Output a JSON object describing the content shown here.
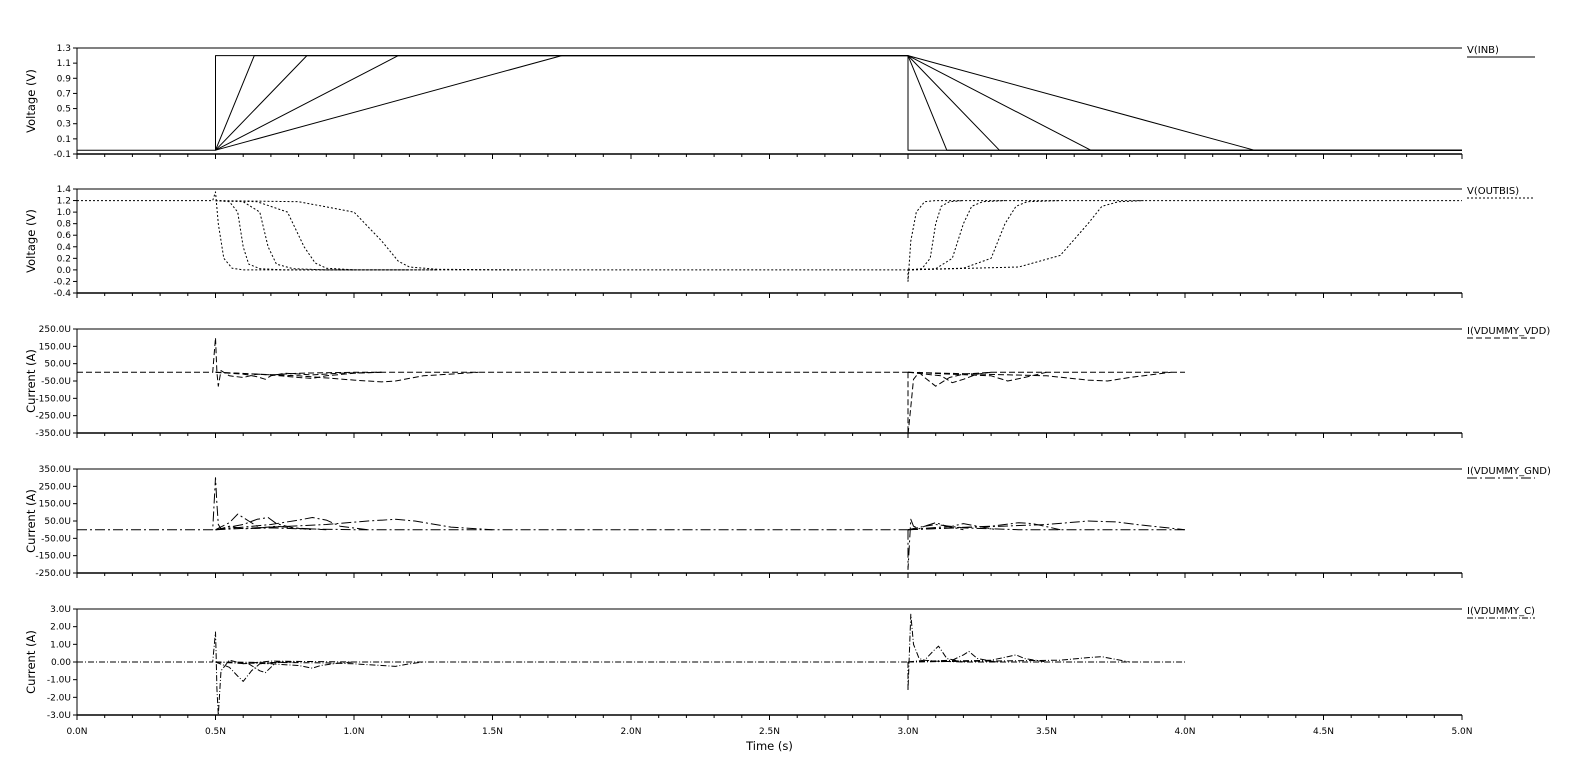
{
  "chart_data": [
    {
      "type": "line",
      "ylabel": "Voltage (V)",
      "yticks": [
        "1.3",
        "1.1",
        "0.9",
        "0.7",
        "0.5",
        "0.3",
        "0.1",
        "-0.1"
      ],
      "ylim": [
        -0.1,
        1.3
      ],
      "legend": "V(INB)",
      "dash": "",
      "series": [
        {
          "x": [
            0,
            0.5,
            0.5,
            3.0,
            3.0,
            5.0
          ],
          "values": [
            -0.05,
            -0.05,
            1.2,
            1.2,
            -0.05,
            -0.05
          ]
        },
        {
          "x": [
            0.5,
            0.64,
            3.0
          ],
          "values": [
            -0.05,
            1.2,
            1.2
          ]
        },
        {
          "x": [
            0.5,
            0.83,
            3.0
          ],
          "values": [
            -0.05,
            1.2,
            1.2
          ]
        },
        {
          "x": [
            0.5,
            1.16,
            3.0
          ],
          "values": [
            -0.05,
            1.2,
            1.2
          ]
        },
        {
          "x": [
            0.5,
            1.75,
            3.0
          ],
          "values": [
            -0.05,
            1.2,
            1.2
          ]
        },
        {
          "x": [
            3.0,
            3.14,
            5.0
          ],
          "values": [
            1.2,
            -0.05,
            -0.05
          ]
        },
        {
          "x": [
            3.0,
            3.33,
            5.0
          ],
          "values": [
            1.2,
            -0.05,
            -0.05
          ]
        },
        {
          "x": [
            3.0,
            3.66,
            5.0
          ],
          "values": [
            1.2,
            -0.05,
            -0.05
          ]
        },
        {
          "x": [
            3.0,
            4.25,
            5.0
          ],
          "values": [
            1.2,
            -0.05,
            -0.05
          ]
        }
      ]
    },
    {
      "type": "line",
      "ylabel": "Voltage (V)",
      "yticks": [
        "1.4",
        "1.2",
        "1.0",
        "0.8",
        "0.6",
        "0.4",
        "0.2",
        "0.0",
        "-0.2",
        "-0.4"
      ],
      "ylim": [
        -0.4,
        1.4
      ],
      "legend": "V(OUTBIS)",
      "dash": "2 2",
      "series": [
        {
          "x": [
            0,
            0.49,
            0.5,
            0.51,
            0.53,
            0.56,
            0.6,
            1.0,
            2.0,
            3.0,
            3.0,
            3.01,
            3.03,
            3.06,
            3.1,
            3.5,
            4.0,
            5.0
          ],
          "values": [
            1.2,
            1.2,
            1.35,
            0.8,
            0.2,
            0.03,
            0.0,
            0.0,
            0.0,
            0.0,
            -0.2,
            0.5,
            1.0,
            1.18,
            1.2,
            1.2,
            1.2,
            1.2
          ]
        },
        {
          "x": [
            0.5,
            0.55,
            0.58,
            0.6,
            0.62,
            0.66,
            0.75,
            1.0
          ],
          "values": [
            1.2,
            1.18,
            1.0,
            0.4,
            0.1,
            0.02,
            0.0,
            0.0
          ]
        },
        {
          "x": [
            0.5,
            0.6,
            0.66,
            0.69,
            0.72,
            0.78,
            0.9,
            1.2
          ],
          "values": [
            1.2,
            1.18,
            1.0,
            0.4,
            0.1,
            0.02,
            0.0,
            0.0
          ]
        },
        {
          "x": [
            0.5,
            0.65,
            0.76,
            0.82,
            0.86,
            0.9,
            1.0,
            1.3
          ],
          "values": [
            1.2,
            1.18,
            1.0,
            0.4,
            0.12,
            0.03,
            0.0,
            0.0
          ]
        },
        {
          "x": [
            0.5,
            0.8,
            1.0,
            1.1,
            1.16,
            1.2,
            1.3,
            1.6
          ],
          "values": [
            1.2,
            1.18,
            1.0,
            0.5,
            0.15,
            0.05,
            0.01,
            0.0
          ]
        },
        {
          "x": [
            3.0,
            3.05,
            3.08,
            3.1,
            3.12,
            3.15,
            3.2
          ],
          "values": [
            0.0,
            0.02,
            0.2,
            0.8,
            1.1,
            1.18,
            1.2
          ]
        },
        {
          "x": [
            3.0,
            3.1,
            3.16,
            3.2,
            3.23,
            3.27,
            3.35
          ],
          "values": [
            0.0,
            0.02,
            0.2,
            0.8,
            1.1,
            1.18,
            1.2
          ]
        },
        {
          "x": [
            3.0,
            3.2,
            3.3,
            3.35,
            3.39,
            3.43,
            3.55
          ],
          "values": [
            0.0,
            0.03,
            0.2,
            0.8,
            1.1,
            1.18,
            1.2
          ]
        },
        {
          "x": [
            3.0,
            3.4,
            3.55,
            3.65,
            3.7,
            3.76,
            3.85
          ],
          "values": [
            0.0,
            0.05,
            0.25,
            0.8,
            1.1,
            1.18,
            1.2
          ]
        }
      ]
    },
    {
      "type": "line",
      "ylabel": "Current (A)",
      "yticks": [
        "250.0U",
        "150.0U",
        "50.0U",
        "-50.0U",
        "-150.0U",
        "-250.0U",
        "-350.0U"
      ],
      "ylim": [
        -350,
        250
      ],
      "legend": "I(VDUMMY_VDD)",
      "dash": "6 3",
      "series": [
        {
          "x": [
            0,
            0.49,
            0.5,
            0.505,
            0.51,
            0.52,
            0.55,
            0.6,
            0.65,
            0.7,
            0.8,
            1.0,
            1.5,
            3.0
          ],
          "values": [
            0,
            0,
            200,
            0,
            -80,
            10,
            -20,
            -30,
            -10,
            -15,
            -5,
            0,
            0,
            0
          ]
        },
        {
          "x": [
            0.5,
            0.6,
            0.65,
            0.68,
            0.7,
            0.75,
            0.85,
            0.95,
            1.1
          ],
          "values": [
            0,
            -10,
            -25,
            -40,
            -20,
            -5,
            -15,
            -5,
            0
          ]
        },
        {
          "x": [
            0.5,
            0.7,
            0.8,
            0.85,
            0.9,
            1.0,
            1.1
          ],
          "values": [
            0,
            -15,
            -30,
            -35,
            -20,
            -5,
            0
          ]
        },
        {
          "x": [
            0.5,
            0.8,
            1.0,
            1.1,
            1.15,
            1.25,
            1.45
          ],
          "values": [
            0,
            -20,
            -45,
            -55,
            -50,
            -20,
            0
          ]
        },
        {
          "x": [
            3.0,
            3.0,
            3.01,
            3.02,
            3.04,
            3.06,
            3.1,
            3.15,
            3.2,
            3.3,
            3.5,
            4.0
          ],
          "values": [
            0,
            -360,
            -200,
            -40,
            0,
            -30,
            -80,
            -30,
            -10,
            0,
            0,
            0
          ]
        },
        {
          "x": [
            3.0,
            3.12,
            3.16,
            3.2,
            3.25,
            3.3
          ],
          "values": [
            0,
            -20,
            -60,
            -40,
            -10,
            0
          ]
        },
        {
          "x": [
            3.0,
            3.3,
            3.36,
            3.42,
            3.5
          ],
          "values": [
            0,
            -20,
            -50,
            -30,
            0
          ]
        },
        {
          "x": [
            3.0,
            3.5,
            3.65,
            3.72,
            3.8,
            3.95
          ],
          "values": [
            0,
            -20,
            -45,
            -50,
            -30,
            0
          ]
        }
      ]
    },
    {
      "type": "line",
      "ylabel": "Current (A)",
      "yticks": [
        "350.0U",
        "250.0U",
        "150.0U",
        "50.0U",
        "-50.0U",
        "-150.0U",
        "-250.0U"
      ],
      "ylim": [
        -250,
        350
      ],
      "legend": "I(VDUMMY_GND)",
      "dash": "10 3 2 3",
      "series": [
        {
          "x": [
            0,
            0.49,
            0.5,
            0.505,
            0.51,
            0.52,
            0.55,
            0.6,
            0.7,
            0.8,
            1.0,
            1.5,
            3.0
          ],
          "values": [
            0,
            0,
            300,
            150,
            30,
            5,
            20,
            5,
            10,
            5,
            0,
            0,
            0
          ]
        },
        {
          "x": [
            0.5,
            0.55,
            0.58,
            0.62,
            0.66,
            0.72,
            0.85
          ],
          "values": [
            0,
            40,
            90,
            50,
            10,
            20,
            0
          ]
        },
        {
          "x": [
            0.5,
            0.6,
            0.65,
            0.69,
            0.72,
            0.78,
            0.9
          ],
          "values": [
            0,
            30,
            60,
            70,
            35,
            10,
            0
          ]
        },
        {
          "x": [
            0.5,
            0.7,
            0.8,
            0.85,
            0.9,
            0.95,
            1.05
          ],
          "values": [
            0,
            30,
            55,
            70,
            55,
            20,
            0
          ]
        },
        {
          "x": [
            0.5,
            0.9,
            1.05,
            1.15,
            1.22,
            1.35,
            1.5
          ],
          "values": [
            0,
            30,
            50,
            60,
            50,
            15,
            0
          ]
        },
        {
          "x": [
            3.0,
            3.0,
            3.01,
            3.02,
            3.04,
            3.06,
            3.1,
            3.2,
            3.4,
            4.0
          ],
          "values": [
            0,
            -230,
            60,
            20,
            5,
            20,
            30,
            10,
            0,
            0
          ]
        },
        {
          "x": [
            3.0,
            3.06,
            3.1,
            3.14,
            3.2
          ],
          "values": [
            0,
            20,
            40,
            20,
            0
          ]
        },
        {
          "x": [
            3.0,
            3.16,
            3.2,
            3.25,
            3.32
          ],
          "values": [
            0,
            20,
            35,
            20,
            0
          ]
        },
        {
          "x": [
            3.0,
            3.3,
            3.4,
            3.45,
            3.55
          ],
          "values": [
            0,
            20,
            40,
            35,
            0
          ]
        },
        {
          "x": [
            3.0,
            3.5,
            3.65,
            3.75,
            3.85,
            4.0
          ],
          "values": [
            0,
            30,
            50,
            45,
            25,
            0
          ]
        }
      ]
    },
    {
      "type": "line",
      "ylabel": "Current (A)",
      "yticks": [
        "3.0U",
        "2.0U",
        "1.0U",
        "0.00",
        "-1.0U",
        "-2.0U",
        "-3.0U"
      ],
      "ylim": [
        -3,
        3
      ],
      "legend": "I(VDUMMY_C)",
      "dash": "6 2 1 2",
      "series": [
        {
          "x": [
            0,
            0.49,
            0.5,
            0.502,
            0.505,
            0.51,
            0.52,
            0.55,
            0.6,
            0.7,
            1.0,
            3.0
          ],
          "values": [
            0,
            0,
            1.7,
            0.5,
            -1.5,
            -3.0,
            -0.5,
            0.1,
            -0.1,
            0.05,
            0,
            0
          ]
        },
        {
          "x": [
            0.5,
            0.55,
            0.58,
            0.6,
            0.63,
            0.66,
            0.75
          ],
          "values": [
            0,
            -0.3,
            -0.8,
            -1.1,
            -0.5,
            -0.1,
            0
          ]
        },
        {
          "x": [
            0.5,
            0.62,
            0.66,
            0.68,
            0.7,
            0.72,
            0.8
          ],
          "values": [
            0,
            -0.1,
            -0.5,
            -0.6,
            -0.3,
            0,
            0
          ]
        },
        {
          "x": [
            0.5,
            0.7,
            0.8,
            0.85,
            0.88,
            0.95,
            1.0
          ],
          "values": [
            0,
            -0.1,
            -0.2,
            -0.35,
            -0.2,
            -0.05,
            0
          ]
        },
        {
          "x": [
            0.5,
            0.9,
            1.0,
            1.1,
            1.15,
            1.2,
            1.25
          ],
          "values": [
            0,
            -0.05,
            -0.1,
            -0.2,
            -0.25,
            -0.1,
            0
          ]
        },
        {
          "x": [
            3.0,
            3.0,
            3.01,
            3.02,
            3.04,
            3.06,
            3.1,
            3.2,
            4.0
          ],
          "values": [
            0,
            -1.6,
            2.7,
            1.0,
            0.2,
            0.1,
            0.05,
            0,
            0
          ]
        },
        {
          "x": [
            3.0,
            3.06,
            3.09,
            3.11,
            3.14,
            3.2
          ],
          "values": [
            0,
            0.1,
            0.6,
            0.9,
            0.2,
            0
          ]
        },
        {
          "x": [
            3.0,
            3.16,
            3.2,
            3.22,
            3.25,
            3.32
          ],
          "values": [
            0,
            0.1,
            0.4,
            0.6,
            0.2,
            0
          ]
        },
        {
          "x": [
            3.0,
            3.3,
            3.36,
            3.39,
            3.42,
            3.5
          ],
          "values": [
            0,
            0.1,
            0.3,
            0.4,
            0.2,
            0
          ]
        },
        {
          "x": [
            3.0,
            3.55,
            3.65,
            3.7,
            3.75,
            3.8
          ],
          "values": [
            0,
            0.1,
            0.25,
            0.3,
            0.15,
            0
          ]
        }
      ]
    }
  ],
  "x_axis": {
    "xlabel": "Time (s)",
    "xlim": [
      0,
      5
    ],
    "xticks": [
      "0.0N",
      "0.5N",
      "1.0N",
      "1.5N",
      "2.0N",
      "2.5N",
      "3.0N",
      "3.5N",
      "4.0N",
      "4.5N",
      "5.0N"
    ]
  }
}
